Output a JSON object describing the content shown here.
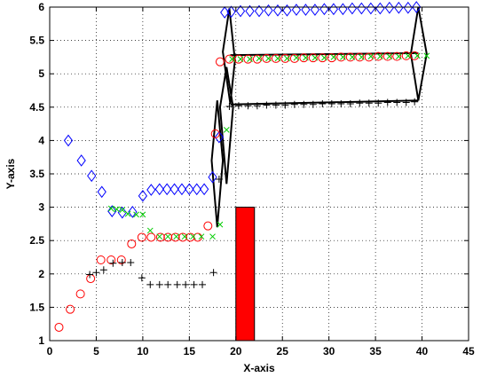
{
  "chart_data": {
    "type": "scatter",
    "xlabel": "X-axis",
    "ylabel": "Y-axis",
    "xlim": [
      0,
      45
    ],
    "ylim": [
      1,
      6
    ],
    "xticks": [
      0,
      5,
      10,
      15,
      20,
      25,
      30,
      35,
      40,
      45
    ],
    "yticks": [
      1,
      1.5,
      2,
      2.5,
      3,
      3.5,
      4,
      4.5,
      5,
      5.5,
      6
    ],
    "grid": "dotted",
    "colors": {
      "blue_diamond": "#0000ff",
      "red_circle": "#ff0000",
      "green_x": "#00cc00",
      "black_plus": "#000000",
      "bar_fill": "#ff0000",
      "shape_outline": "#000000"
    },
    "series": [
      {
        "marker": "diamond",
        "color": "#0000ff",
        "x": [
          2,
          3.4,
          4.5,
          5.6,
          6.7,
          7.8,
          8.9,
          10,
          10.9,
          11.8,
          12.6,
          13.4,
          14.2,
          15,
          15.8,
          16.6,
          17.5,
          18.2,
          18.8,
          19.5,
          20.5,
          21.5,
          22.5,
          23.5,
          24.5,
          25.5,
          26.5,
          27.5,
          28.5,
          29.5,
          30.5,
          31.5,
          32.5,
          33.5,
          34.5,
          35.5,
          36.5,
          37.5,
          38.5,
          39.4
        ],
        "y": [
          4.0,
          3.7,
          3.47,
          3.23,
          2.94,
          2.92,
          2.93,
          3.17,
          3.26,
          3.27,
          3.27,
          3.27,
          3.27,
          3.27,
          3.27,
          3.27,
          3.45,
          4.05,
          5.92,
          5.93,
          5.94,
          5.94,
          5.94,
          5.95,
          5.95,
          5.95,
          5.96,
          5.96,
          5.96,
          5.97,
          5.97,
          5.97,
          5.98,
          5.98,
          5.98,
          5.98,
          5.99,
          5.99,
          5.99,
          6.0
        ]
      },
      {
        "marker": "circle",
        "color": "#ff0000",
        "x": [
          1,
          2.2,
          3.3,
          4.4,
          5.5,
          6.6,
          7.7,
          8.8,
          9.9,
          10.9,
          11.9,
          12.7,
          13.5,
          14.3,
          15.1,
          15.9,
          17,
          17.8,
          18.3,
          19.3,
          20.3,
          21.3,
          22.3,
          23.3,
          24.3,
          25.3,
          26.3,
          27.3,
          28.3,
          29.3,
          30.3,
          31.3,
          32.3,
          33.3,
          34.3,
          35.3,
          36.3,
          37.3,
          38.3,
          39.2
        ],
        "y": [
          1.2,
          1.47,
          1.7,
          1.93,
          2.21,
          2.21,
          2.21,
          2.45,
          2.55,
          2.55,
          2.55,
          2.55,
          2.55,
          2.55,
          2.55,
          2.55,
          2.72,
          4.1,
          5.18,
          5.22,
          5.22,
          5.22,
          5.22,
          5.23,
          5.23,
          5.23,
          5.23,
          5.24,
          5.24,
          5.24,
          5.24,
          5.25,
          5.25,
          5.25,
          5.25,
          5.26,
          5.26,
          5.26,
          5.27,
          5.27
        ]
      },
      {
        "marker": "x",
        "color": "#00cc00",
        "x": [
          6.6,
          7.2,
          7.8,
          8.4,
          9.3,
          10,
          10.8,
          11.8,
          12.7,
          13.6,
          14.5,
          15.4,
          16.3,
          17.5,
          18.3,
          19.0,
          19.6,
          20.5,
          21.5,
          22.5,
          23.5,
          24.5,
          25.5,
          26.5,
          27.5,
          28.5,
          29.5,
          30.5,
          31.5,
          32.5,
          33.5,
          34.5,
          35.5,
          36.5,
          37.5,
          38.5,
          39.5,
          40.5
        ],
        "y": [
          2.98,
          2.97,
          2.96,
          2.9,
          2.89,
          2.89,
          2.65,
          2.56,
          2.56,
          2.56,
          2.56,
          2.56,
          2.56,
          2.56,
          2.74,
          4.16,
          5.22,
          5.22,
          5.22,
          5.23,
          5.23,
          5.23,
          5.23,
          5.24,
          5.24,
          5.24,
          5.24,
          5.25,
          5.25,
          5.25,
          5.25,
          5.26,
          5.26,
          5.26,
          5.26,
          5.27,
          5.27,
          5.27
        ]
      },
      {
        "marker": "plus",
        "color": "#000000",
        "x": [
          4.3,
          5.0,
          5.8,
          6.8,
          7.8,
          8.7,
          9.9,
          10.8,
          11.8,
          12.7,
          13.7,
          14.6,
          15.5,
          16.4,
          17.6,
          18.2,
          19.3,
          20.3,
          21.3,
          22.3,
          23.3,
          24.3,
          25.3,
          26.3,
          27.3,
          28.3,
          29.3,
          30.3,
          31.3,
          32.3,
          33.3,
          34.3,
          35.3,
          36.3,
          37.3,
          38.3,
          39.2
        ],
        "y": [
          1.99,
          2.02,
          2.06,
          2.16,
          2.17,
          2.17,
          1.94,
          1.84,
          1.84,
          1.84,
          1.84,
          1.84,
          1.84,
          1.84,
          2.02,
          3.42,
          4.51,
          4.52,
          4.52,
          4.52,
          4.53,
          4.53,
          4.53,
          4.54,
          4.54,
          4.54,
          4.55,
          4.55,
          4.55,
          4.55,
          4.56,
          4.56,
          4.56,
          4.57,
          4.57,
          4.57,
          4.58
        ]
      }
    ],
    "bars": [
      {
        "x0": 20,
        "x1": 22,
        "y0": 1,
        "y1": 3,
        "color": "#ff0000"
      }
    ],
    "outlines": [
      {
        "color": "#000000",
        "points": [
          [
            17.4,
            3.7
          ],
          [
            18,
            2.7
          ],
          [
            18.6,
            3.7
          ],
          [
            18,
            4.6
          ]
        ]
      },
      {
        "color": "#000000",
        "points": [
          [
            18.3,
            4.5
          ],
          [
            19,
            3.35
          ],
          [
            19.7,
            4.5
          ],
          [
            19,
            5.1
          ]
        ]
      },
      {
        "color": "#000000",
        "points": [
          [
            18.6,
            5.33
          ],
          [
            19.4,
            4.55
          ],
          [
            19.9,
            5.2
          ],
          [
            19.3,
            5.98
          ]
        ]
      },
      {
        "color": "#000000",
        "points": [
          [
            38.8,
            5.3
          ],
          [
            39.6,
            4.6
          ],
          [
            40.5,
            5.3
          ],
          [
            39.6,
            6.0
          ]
        ]
      },
      {
        "color": "#000000",
        "points": [
          [
            19.4,
            5.28
          ],
          [
            39.6,
            5.31
          ]
        ]
      },
      {
        "color": "#000000",
        "points": [
          [
            19.4,
            4.54
          ],
          [
            39.6,
            4.6
          ]
        ]
      }
    ]
  }
}
